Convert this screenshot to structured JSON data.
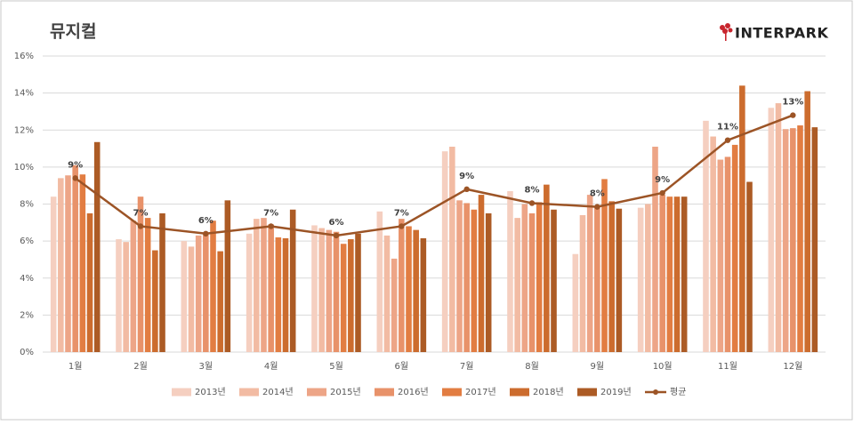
{
  "chart_data": {
    "type": "bar",
    "title": "뮤지컬",
    "logo": "INTERPARK",
    "categories": [
      "1월",
      "2월",
      "3월",
      "4월",
      "5월",
      "6월",
      "7월",
      "8월",
      "9월",
      "10월",
      "11월",
      "12월"
    ],
    "series": [
      {
        "name": "2013년",
        "color": "#f5cfc0",
        "values": [
          8.4,
          6.1,
          6.0,
          6.4,
          6.85,
          7.6,
          10.85,
          8.7,
          5.3,
          7.8,
          12.5,
          13.2
        ]
      },
      {
        "name": "2014년",
        "color": "#f2bba3",
        "values": [
          9.4,
          5.95,
          5.7,
          7.2,
          6.7,
          6.3,
          11.1,
          7.25,
          7.4,
          8.0,
          11.65,
          13.45
        ]
      },
      {
        "name": "2015년",
        "color": "#eda587",
        "values": [
          9.55,
          7.1,
          6.3,
          7.25,
          6.6,
          5.05,
          8.2,
          8.0,
          8.5,
          11.1,
          10.4,
          12.05
        ]
      },
      {
        "name": "2016년",
        "color": "#e8926a",
        "values": [
          10.1,
          8.4,
          6.45,
          6.9,
          6.5,
          7.2,
          8.05,
          7.5,
          7.85,
          8.5,
          10.55,
          12.1
        ]
      },
      {
        "name": "2017년",
        "color": "#e27d42",
        "values": [
          9.6,
          7.25,
          7.1,
          6.2,
          5.85,
          6.8,
          7.7,
          8.1,
          9.35,
          8.4,
          11.2,
          12.25
        ]
      },
      {
        "name": "2018년",
        "color": "#cc6c2e",
        "values": [
          7.5,
          5.5,
          5.45,
          6.15,
          6.1,
          6.6,
          8.5,
          9.05,
          8.15,
          8.4,
          14.4,
          14.1
        ]
      },
      {
        "name": "2019년",
        "color": "#ac5b25",
        "values": [
          11.35,
          7.5,
          8.2,
          7.7,
          6.4,
          6.15,
          7.5,
          7.7,
          7.75,
          8.4,
          9.2,
          12.15
        ]
      },
      {
        "name": "평균",
        "color": "#9c5426",
        "type": "line",
        "values": [
          9.4,
          6.8,
          6.4,
          6.8,
          6.3,
          6.8,
          8.8,
          8.05,
          7.85,
          8.6,
          11.45,
          12.8
        ],
        "value_labels": [
          "9%",
          "7%",
          "6%",
          "7%",
          "6%",
          "7%",
          "9%",
          "8%",
          "8%",
          "9%",
          "11%",
          "13%"
        ]
      }
    ],
    "ylim": [
      0,
      16
    ],
    "yticks": [
      {
        "value": 0,
        "label": "0%"
      },
      {
        "value": 2,
        "label": "2%"
      },
      {
        "value": 4,
        "label": "4%"
      },
      {
        "value": 6,
        "label": "6%"
      },
      {
        "value": 8,
        "label": "8%"
      },
      {
        "value": 10,
        "label": "10%"
      },
      {
        "value": 12,
        "label": "12%"
      },
      {
        "value": 14,
        "label": "14%"
      },
      {
        "value": 16,
        "label": "16%"
      }
    ],
    "grid": true,
    "legend": "bottom"
  }
}
